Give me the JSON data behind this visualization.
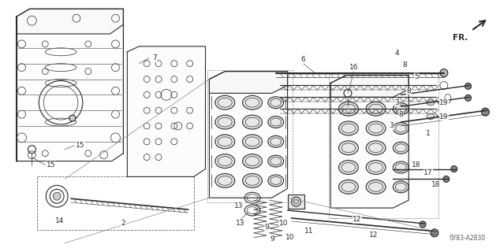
{
  "bg_color": "#ffffff",
  "fig_width": 6.34,
  "fig_height": 3.2,
  "dpi": 100,
  "diagram_code": "SY83-A2830",
  "fr_label": "FR.",
  "line_color": "#2a2a2a",
  "gray_line": "#888888",
  "light_gray": "#cccccc",
  "annotation_fontsize": 6.5
}
